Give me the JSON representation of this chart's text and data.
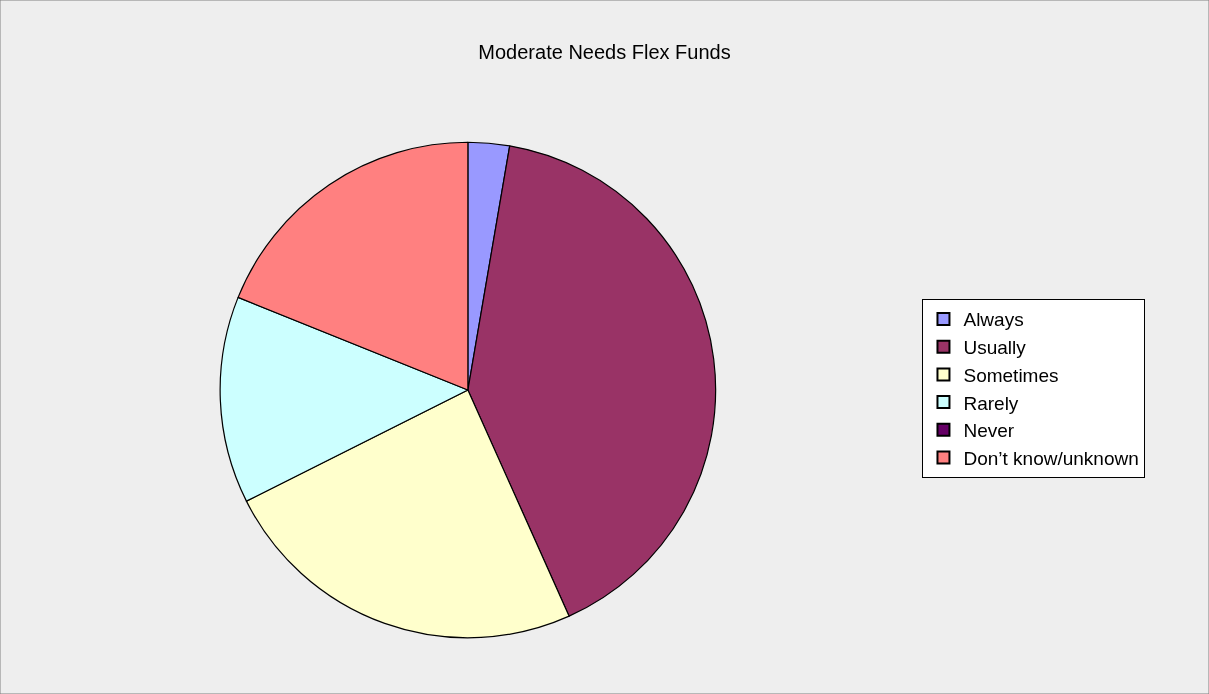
{
  "chart_data": {
    "type": "pie",
    "title": "Moderate Needs Flex Funds",
    "categories": [
      "Always",
      "Usually",
      "Sometimes",
      "Rarely",
      "Never",
      "Don’t know/unknown"
    ],
    "values": [
      2.7,
      40.6,
      24.3,
      13.5,
      0,
      18.9
    ],
    "colors": [
      "#9999ff",
      "#993366",
      "#ffffcc",
      "#ccffff",
      "#660066",
      "#ff8080"
    ],
    "legend": "right"
  }
}
